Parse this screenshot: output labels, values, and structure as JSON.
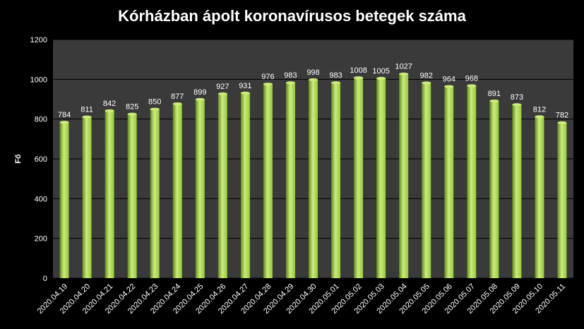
{
  "chart_data": {
    "type": "bar",
    "title": "Kórházban ápolt koronavírusos betegek száma",
    "ylabel": "Fő",
    "xlabel": "",
    "ylim": [
      0,
      1200
    ],
    "yticks": [
      0,
      200,
      400,
      600,
      800,
      1000,
      1200
    ],
    "grid": true,
    "legend": "none",
    "categories": [
      "2020.04.19",
      "2020.04.20",
      "2020.04.21",
      "2020.04.22",
      "2020.04.23",
      "2020.04.24",
      "2020.04.25",
      "2020.04.26",
      "2020.04.27",
      "2020.04.28",
      "2020.04.29",
      "2020.04.30",
      "2020.05.01",
      "2020.05.02",
      "2020.05.03",
      "2020.05.04",
      "2020.05.05",
      "2020.05.06",
      "2020.05.07",
      "2020.05.08",
      "2020.05.09",
      "2020.05.10",
      "2020.05.11"
    ],
    "values": [
      784,
      811,
      842,
      825,
      850,
      877,
      899,
      927,
      931,
      976,
      983,
      998,
      983,
      1008,
      1005,
      1027,
      982,
      964,
      968,
      891,
      873,
      812,
      782
    ],
    "colors": {
      "plot_bg": "#3a3a3a",
      "bar": "#92c83e",
      "bar_highlight": "#cdec7a",
      "bar_shadow": "#5f8a20",
      "grid": "#000000"
    }
  }
}
